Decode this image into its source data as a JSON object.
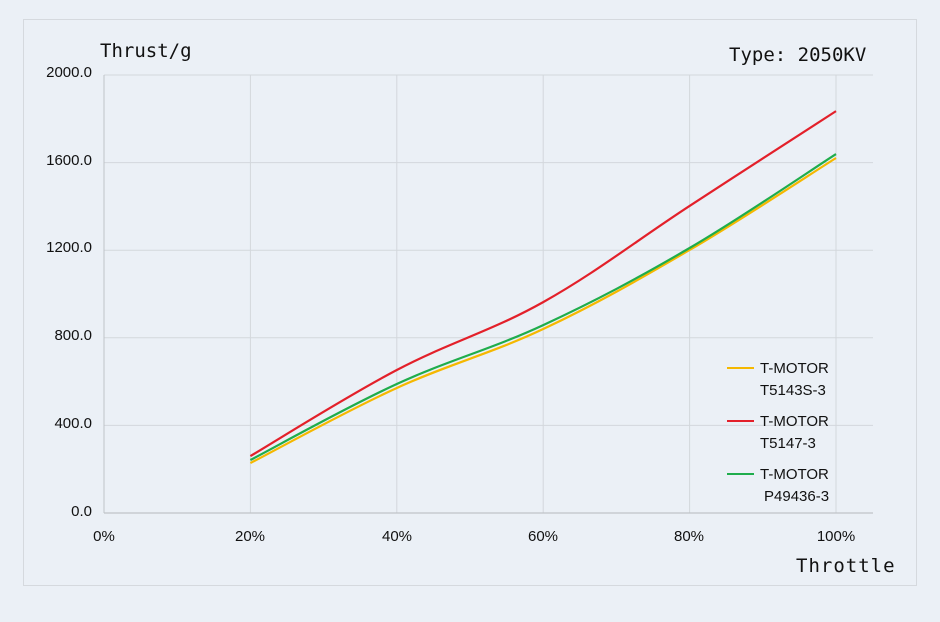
{
  "chart_data": {
    "type": "line",
    "title": "Type: 2050KV",
    "xlabel": "Throttle",
    "ylabel": "Thrust/g",
    "x": [
      "20%",
      "40%",
      "60%",
      "80%",
      "100%"
    ],
    "x_tick_labels": [
      "0%",
      "20%",
      "40%",
      "60%",
      "80%",
      "100%"
    ],
    "y_tick_labels": [
      "0.0",
      "400.0",
      "800.0",
      "1200.0",
      "1600.0",
      "2000.0"
    ],
    "xlim": [
      0,
      100
    ],
    "ylim": [
      0,
      2000
    ],
    "grid": true,
    "legend_position": "right-inside-bottom",
    "series": [
      {
        "name": "T-MOTOR T5143S-3",
        "label_line1": "T-MOTOR",
        "label_line2": "T5143S-3",
        "color": "#f5b800",
        "values": [
          228,
          571,
          840,
          1201,
          1621
        ]
      },
      {
        "name": "T-MOTOR T5147-3",
        "label_line1": "T-MOTOR",
        "label_line2": "T5147-3",
        "color": "#e3202a",
        "values": [
          260,
          653,
          963,
          1402,
          1835
        ]
      },
      {
        "name": "T-MOTOR P49436-3",
        "label_line1": "T-MOTOR",
        "label_line2": "P49436-3",
        "color": "#1fad4c",
        "values": [
          242,
          589,
          858,
          1210,
          1639
        ]
      }
    ]
  },
  "colors": {
    "background": "#ebf0f6",
    "grid": "#d3d7dc",
    "axis": "#bfc3c8",
    "text": "#111111"
  }
}
